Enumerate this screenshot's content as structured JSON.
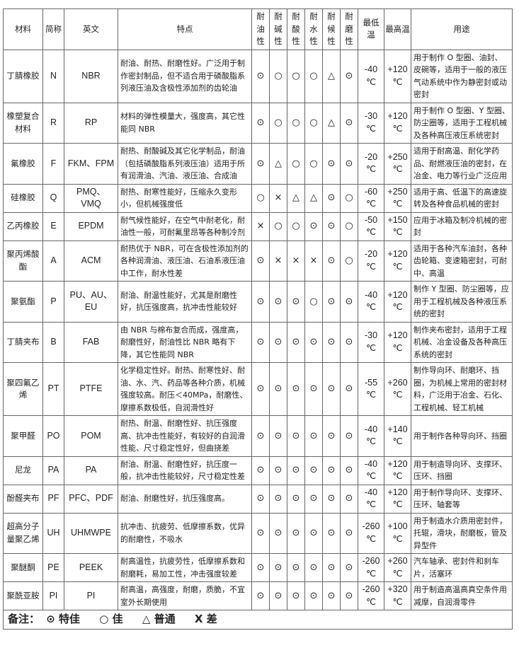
{
  "headers": {
    "material": "材料",
    "abbr": "简称",
    "english": "英文",
    "features": "特点",
    "oil": "耐油性",
    "alkali": "耐碱性",
    "acid": "耐酸性",
    "water": "耐水性",
    "weather": "耐候性",
    "wear": "耐磨性",
    "min_temp": "最低温",
    "max_temp": "最高温",
    "usage": "用途"
  },
  "rows": [
    {
      "material": "丁腈橡胶",
      "abbr": "N",
      "english": "NBR",
      "features": "耐油、耐热、耐磨性好。广泛用于制作密封制品，但不适合用于磷酸脂系列液压油及含极性添加剂的齿轮油",
      "ratings": [
        "⊙",
        "○",
        "○",
        "○",
        "△",
        "⊙"
      ],
      "min": "-40",
      "max": "+120",
      "unit": "℃",
      "usage": "用于制作 O 型圈、油封、皮碗等，适用于一般的液压气动系统中作为静密封或动密封"
    },
    {
      "material": "橡塑复合材料",
      "abbr": "R",
      "english": "RP",
      "features": "材料的弹性模量大，强度高，其它性能同 NBR",
      "ratings": [
        "⊙",
        "○",
        "○",
        "○",
        "△",
        "⊙"
      ],
      "min": "-30",
      "max": "+120",
      "unit": "℃",
      "usage": "用于制作 O 型圈、Y 型圈、防尘圈等，适用于工程机械及各种高压液压系统密封"
    },
    {
      "material": "氟橡胶",
      "abbr": "F",
      "english": "FKM、FPM",
      "features": "耐热、耐酸碱及其它化学制品，耐油（包括磷酸脂系列液压油）适用于所有润滑油、汽油、液压油、合成油",
      "ratings": [
        "⊙",
        "△",
        "○",
        "○",
        "⊙",
        "⊙"
      ],
      "min": "-20",
      "max": "+250",
      "unit": "℃",
      "usage": "适用于耐高温、耐化学药品、耐燃液压油的密封，在冶金、电力等行业广泛应用"
    },
    {
      "material": "硅橡胶",
      "abbr": "Q",
      "english": "PMQ、VMQ",
      "features": "耐热、耐寒性能好，压缩永久变形小，但机械强度低",
      "ratings": [
        "○",
        "×",
        "△",
        "△",
        "⊙",
        "○"
      ],
      "min": "-60",
      "max": "+250",
      "unit": "℃",
      "usage": "适用于高、低温下的高速旋转及各种食品机械的密封"
    },
    {
      "material": "乙丙橡胶",
      "abbr": "E",
      "english": "EPDM",
      "features": "耐气候性能好，在空气中耐老化，耐油性一般，可耐氟里昂等各种制冷剂",
      "ratings": [
        "×",
        "○",
        "○",
        "⊙",
        "⊙",
        "○"
      ],
      "min": "-50",
      "max": "+150",
      "unit": "℃",
      "usage": "应用于冰箱及制冷机械的密封"
    },
    {
      "material": "聚丙烯酸酯",
      "abbr": "A",
      "english": "ACM",
      "features": "耐热优于 NBR，可在含极性添加剂的各种润滑油、液压油、石油系液压油中工作，耐水性差",
      "ratings": [
        "⊙",
        "×",
        "×",
        "×",
        "⊙",
        "○"
      ],
      "min": "-20",
      "max": "+120",
      "unit": "℃",
      "usage": "适用于各种汽车油封，各种齿轮箱、变速箱密封，可耐中、高温"
    },
    {
      "material": "聚氨酯",
      "abbr": "P",
      "english": "PU、AU、EU",
      "features": "耐油、耐温性能好，尤其是耐磨性好，抗压强度高，抗冲击性能较好",
      "ratings": [
        "⊙",
        "⊙",
        "⊙",
        "○",
        "⊙",
        "⊙"
      ],
      "min": "-40",
      "max": "+120",
      "unit": "℃",
      "usage": "制作 Y 型圈、防尘圈等，应用于工程机械及各种液压系统的密封"
    },
    {
      "material": "丁腈夹布",
      "abbr": "B",
      "english": "FAB",
      "features": "由 NBR 与棉布复合而成，强度高，耐磨性好，耐油性比 NBR 略有下降，其它性能同 NBR",
      "ratings": [
        "⊙",
        "⊙",
        "⊙",
        "⊙",
        "⊙",
        "⊙"
      ],
      "min": "-30",
      "max": "+120",
      "unit": "℃",
      "usage": "制作夹布密封，适用于工程机械、冶金设备及各种高压系统的密封"
    },
    {
      "material": "聚四氟乙烯",
      "abbr": "PT",
      "english": "PTFE",
      "features": "化学稳定性好。耐热、耐寒性好、耐油、水、汽、药品等各种介质，机械强度较高。耐压＜40MPa，耐磨性、摩擦系数极低，自润滑性好",
      "ratings": [
        "⊙",
        "⊙",
        "⊙",
        "⊙",
        "⊙",
        "⊙"
      ],
      "min": "-55",
      "max": "+260",
      "unit": "℃",
      "usage": "制作导向环、耐磨环、挡圈，为机械上常用的密封材料，广泛用于冶金、石化、工程机械、轻工机械"
    },
    {
      "material": "聚甲醛",
      "abbr": "PO",
      "english": "POM",
      "features": "耐热、耐温、耐磨性好、抗压强度高、抗冲击性能好，有较好的自润滑性能、尺寸稳定性好，但曲挠差",
      "ratings": [
        "⊙",
        "⊙",
        "⊙",
        "⊙",
        "⊙",
        "⊙"
      ],
      "min": "-40",
      "max": "+140",
      "unit": "℃",
      "usage": "用于制作各种导向环、挡圈"
    },
    {
      "material": "尼龙",
      "abbr": "PA",
      "english": "PA",
      "features": "耐油、耐温、耐磨性好，抗压度一般，抗冲击性能较好，尺寸稳定性差",
      "ratings": [
        "⊙",
        "⊙",
        "⊙",
        "⊙",
        "⊙",
        "⊙"
      ],
      "min": "-40",
      "max": "+120",
      "unit": "℃",
      "usage": "用于制造导向环、支撑环、压环、挡圈"
    },
    {
      "material": "酚醛夹布",
      "abbr": "PF",
      "english": "PFC、PDF",
      "features": "耐油、耐磨性好，抗压强度高。",
      "ratings": [
        "⊙",
        "⊙",
        "⊙",
        "⊙",
        "⊙",
        "⊙"
      ],
      "min": "-40",
      "max": "+120",
      "unit": "℃",
      "usage": "用于制作导向环、支撑环、压环、轴套等"
    },
    {
      "material": "超高分子量聚乙烯",
      "abbr": "UH",
      "english": "UHMWPE",
      "features": "抗冲击、抗疲劳、低摩擦系数，优异的耐磨性，不吸水",
      "ratings": [
        "⊙",
        "⊙",
        "⊙",
        "⊙",
        "⊙",
        "⊙"
      ],
      "min": "-260",
      "max": "+100",
      "unit": "℃",
      "usage": "用于制造水介质用密封件，托辊，滑块，耐磨板，管及异型件"
    },
    {
      "material": "聚醚酮",
      "abbr": "PE",
      "english": "PEEK",
      "features": "耐高温性，抗疲劳性，低摩擦系数和耐磨耗，易加工性，冲击强度较差",
      "ratings": [
        "⊙",
        "⊙",
        "⊙",
        "⊙",
        "⊙",
        "⊙"
      ],
      "min": "-260",
      "max": "+260",
      "unit": "℃",
      "usage": "汽车轴承、密封件和刹车片，活塞环"
    },
    {
      "material": "聚酰亚胺",
      "abbr": "PI",
      "english": "PI",
      "features": "耐高温，高强度，耐磨，质脆，不宜室外长期使用",
      "ratings": [
        "⊙",
        "⊙",
        "⊙",
        "⊙",
        "⊙",
        "⊙"
      ],
      "min": "-260",
      "max": "+320",
      "unit": "℃",
      "usage": "用于制造高温高真空条件用减摩，自润滑零件"
    }
  ],
  "note": {
    "label": "备注：",
    "items": [
      "⊙ 特佳",
      "○ 佳",
      "△ 普通",
      "X 差"
    ]
  }
}
